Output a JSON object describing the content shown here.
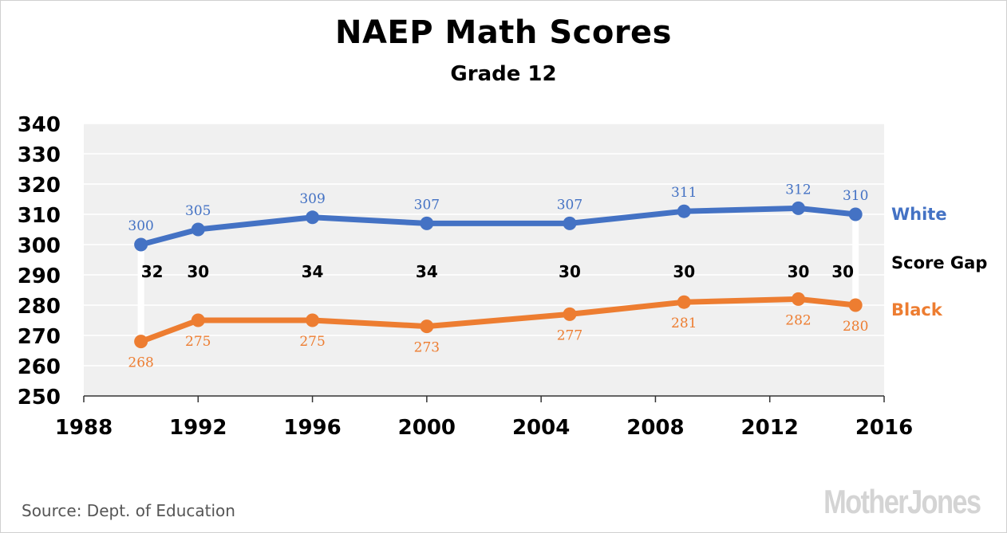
{
  "chart_data": {
    "type": "line",
    "title": "NAEP Math Scores",
    "subtitle": "Grade 12",
    "x": [
      1990,
      1992,
      1996,
      2000,
      2005,
      2009,
      2013,
      2015
    ],
    "xlim": [
      1988,
      2016
    ],
    "ylim": [
      250,
      340
    ],
    "xticks": [
      1988,
      1992,
      1996,
      2000,
      2004,
      2008,
      2012,
      2016
    ],
    "yticks": [
      250,
      260,
      270,
      280,
      290,
      300,
      310,
      320,
      330,
      340
    ],
    "grid": true,
    "series": [
      {
        "name": "White",
        "color": "#4472c4",
        "values": [
          300,
          305,
          309,
          307,
          307,
          311,
          312,
          310
        ]
      },
      {
        "name": "Black",
        "color": "#ed7d31",
        "values": [
          268,
          275,
          275,
          273,
          277,
          281,
          282,
          280
        ]
      }
    ],
    "gap": {
      "name": "Score Gap",
      "values": [
        32,
        30,
        34,
        34,
        30,
        30,
        30,
        30
      ]
    }
  },
  "source": "Source: Dept. of Education",
  "brand": "MotherJones"
}
